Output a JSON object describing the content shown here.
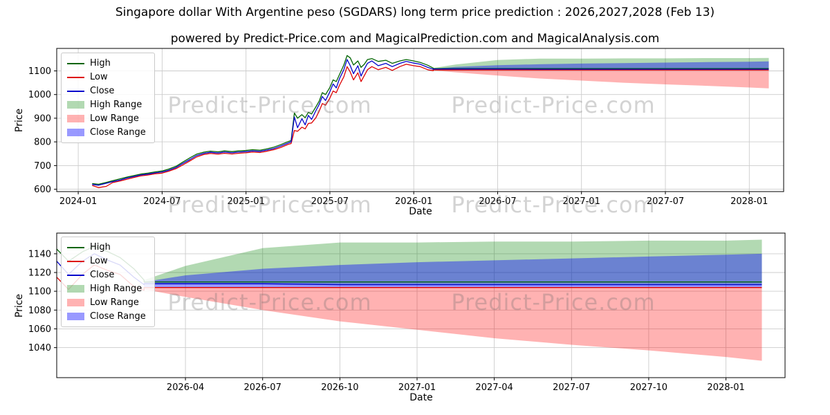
{
  "title": "Singapore dollar With Argentine peso (SGDARS) long term price prediction : 2026,2027,2028 (Feb 13)",
  "subtitle": "powered by Predict-Price.com and MagicalPrediction.com and MagicalAnalysis.com",
  "watermark": {
    "text": "Predict-Price.com"
  },
  "legend": {
    "items": [
      {
        "label": "High",
        "series": "high",
        "swatch": "line"
      },
      {
        "label": "Low",
        "series": "low",
        "swatch": "line"
      },
      {
        "label": "Close",
        "series": "close",
        "swatch": "line"
      },
      {
        "label": "High Range",
        "series": "high_range",
        "swatch": "patch"
      },
      {
        "label": "Low Range",
        "series": "low_range",
        "swatch": "patch"
      },
      {
        "label": "Close Range",
        "series": "close_range",
        "swatch": "patch"
      }
    ]
  },
  "chart_data": {
    "type": "line",
    "title": "Singapore dollar With Argentine peso (SGDARS) long term price prediction : 2026,2027,2028 (Feb 13)",
    "subtitle": "powered by Predict-Price.com and MagicalPrediction.com and MagicalAnalysis.com",
    "colors": {
      "high": "#006400",
      "low": "#dd0000",
      "close": "#0000cc",
      "high_range": "rgba(0,128,0,0.30)",
      "low_range": "rgba(255,0,0,0.30)",
      "close_range": "rgba(0,0,255,0.40)",
      "grid": "#cccccc",
      "spine": "#000000"
    },
    "series": {
      "historical": {
        "dates": [
          "2024-02-01",
          "2024-02-15",
          "2024-03-01",
          "2024-03-15",
          "2024-04-01",
          "2024-04-15",
          "2024-05-01",
          "2024-05-15",
          "2024-06-01",
          "2024-06-15",
          "2024-07-01",
          "2024-07-15",
          "2024-08-01",
          "2024-08-15",
          "2024-09-01",
          "2024-09-15",
          "2024-10-01",
          "2024-10-15",
          "2024-11-01",
          "2024-11-15",
          "2024-12-01",
          "2024-12-15",
          "2025-01-01",
          "2025-01-15",
          "2025-02-01",
          "2025-02-15",
          "2025-03-01",
          "2025-03-15",
          "2025-04-01",
          "2025-04-08",
          "2025-04-15",
          "2025-04-22",
          "2025-05-01",
          "2025-05-08",
          "2025-05-15",
          "2025-05-22",
          "2025-06-01",
          "2025-06-08",
          "2025-06-15",
          "2025-06-22",
          "2025-07-01",
          "2025-07-08",
          "2025-07-15",
          "2025-07-22",
          "2025-08-01",
          "2025-08-08",
          "2025-08-15",
          "2025-08-22",
          "2025-09-01",
          "2025-09-08",
          "2025-09-15",
          "2025-09-22",
          "2025-10-01",
          "2025-10-15",
          "2025-11-01",
          "2025-11-15",
          "2025-12-01",
          "2025-12-15",
          "2026-01-01",
          "2026-01-15",
          "2026-02-01",
          "2026-02-13"
        ],
        "high": [
          624,
          621,
          629,
          636,
          644,
          651,
          658,
          664,
          668,
          673,
          677,
          685,
          697,
          714,
          733,
          748,
          757,
          761,
          758,
          762,
          759,
          762,
          764,
          767,
          765,
          770,
          778,
          788,
          801,
          806,
          922,
          900,
          915,
          902,
          925,
          918,
          948,
          972,
          1008,
          1000,
          1030,
          1062,
          1055,
          1085,
          1125,
          1165,
          1155,
          1125,
          1142,
          1115,
          1128,
          1148,
          1152,
          1140,
          1145,
          1132,
          1142,
          1148,
          1142,
          1136,
          1124,
          1112
        ],
        "low": [
          616,
          607,
          612,
          628,
          635,
          642,
          650,
          656,
          660,
          665,
          668,
          676,
          687,
          702,
          720,
          736,
          747,
          751,
          748,
          752,
          749,
          752,
          754,
          757,
          755,
          760,
          767,
          776,
          789,
          793,
          848,
          845,
          862,
          855,
          878,
          880,
          902,
          930,
          962,
          955,
          985,
          1015,
          1008,
          1040,
          1075,
          1118,
          1095,
          1062,
          1092,
          1055,
          1080,
          1105,
          1118,
          1105,
          1115,
          1102,
          1118,
          1128,
          1122,
          1118,
          1105,
          1101
        ],
        "close": [
          620,
          617,
          625,
          632,
          639,
          647,
          654,
          660,
          664,
          669,
          673,
          680,
          692,
          708,
          726,
          742,
          752,
          756,
          753,
          757,
          754,
          757,
          759,
          762,
          760,
          765,
          772,
          782,
          795,
          800,
          905,
          860,
          898,
          872,
          912,
          895,
          932,
          958,
          992,
          975,
          1012,
          1045,
          1028,
          1068,
          1105,
          1148,
          1122,
          1088,
          1122,
          1078,
          1108,
          1132,
          1142,
          1122,
          1132,
          1118,
          1132,
          1140,
          1133,
          1128,
          1115,
          1107
        ]
      },
      "forecast": {
        "dates": [
          "2026-02-13",
          "2026-04-01",
          "2026-07-01",
          "2026-10-01",
          "2027-01-01",
          "2027-04-01",
          "2027-07-01",
          "2027-10-01",
          "2028-01-01",
          "2028-02-13"
        ],
        "high": [
          1110,
          1110,
          1110,
          1110,
          1110,
          1110,
          1110,
          1110,
          1110,
          1110
        ],
        "low": [
          1104,
          1104,
          1104,
          1104,
          1104,
          1104,
          1104,
          1104,
          1104,
          1104
        ],
        "close": [
          1108,
          1108,
          1108,
          1107,
          1107,
          1107,
          1107,
          1107,
          1107,
          1107
        ],
        "high_range_top": [
          1112,
          1127,
          1146,
          1152,
          1152,
          1153,
          1153,
          1154,
          1154,
          1155
        ],
        "low_range_bottom": [
          1102,
          1094,
          1080,
          1068,
          1059,
          1050,
          1043,
          1037,
          1030,
          1026
        ],
        "close_range_top": [
          1110,
          1117,
          1124,
          1128,
          1131,
          1133,
          1135,
          1137,
          1139,
          1140
        ]
      }
    },
    "subplots": [
      {
        "id": "chart1",
        "xlabel": "Date",
        "ylabel": "Price",
        "x_domain": [
          "2023-11-15",
          "2028-03-15"
        ],
        "y_domain": [
          590,
          1195
        ],
        "x_ticks": [
          "2024-01",
          "2024-07",
          "2025-01",
          "2025-07",
          "2026-01",
          "2026-07",
          "2027-01",
          "2027-07",
          "2028-01"
        ],
        "y_ticks": [
          600,
          700,
          800,
          900,
          1000,
          1100
        ],
        "grid": true,
        "legend_position": "upper left"
      },
      {
        "id": "chart2",
        "xlabel": "Date",
        "ylabel": "Price",
        "x_domain": [
          "2025-11-01",
          "2028-03-10"
        ],
        "y_domain": [
          1008,
          1162
        ],
        "x_ticks": [
          "2026-04",
          "2026-07",
          "2026-10",
          "2027-01",
          "2027-04",
          "2027-07",
          "2027-10",
          "2028-01"
        ],
        "y_ticks": [
          1040,
          1060,
          1080,
          1100,
          1120,
          1140
        ],
        "grid": true,
        "legend_position": "upper left"
      }
    ]
  }
}
